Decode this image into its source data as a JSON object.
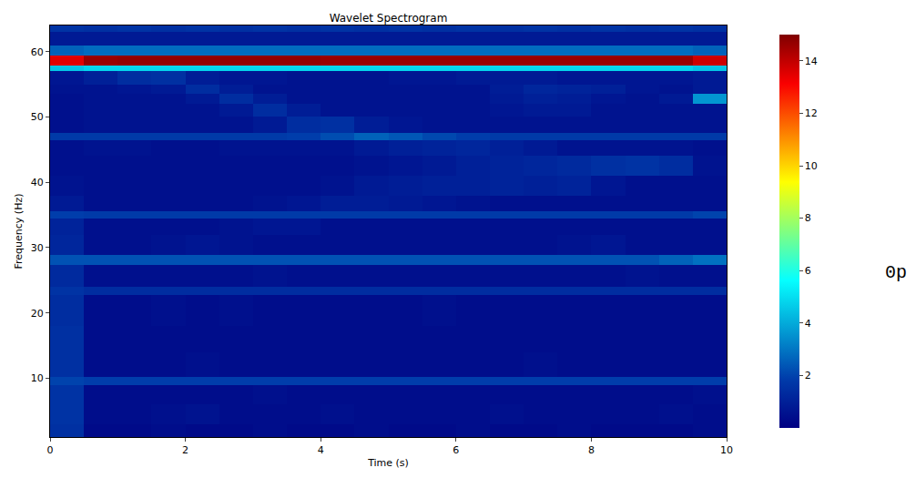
{
  "chart_data": {
    "type": "heatmap",
    "title": "Wavelet Spectrogram",
    "x_label": "Time (s)",
    "y_label": "Frequency (Hz)",
    "x": [
      0,
      0.5,
      1,
      1.5,
      2,
      2.5,
      3,
      3.5,
      4,
      4.5,
      5,
      5.5,
      6,
      6.5,
      7,
      7.5,
      8,
      8.5,
      9,
      9.5,
      10
    ],
    "y": [
      1,
      3,
      6,
      9,
      10.2,
      14,
      18,
      22.8,
      24,
      27.3,
      28.9,
      32,
      34.5,
      35.6,
      38,
      41,
      44,
      46.4,
      47.6,
      50,
      52,
      53.5,
      55,
      57,
      57.8,
      59.4,
      61,
      63,
      64
    ],
    "cells": [
      [
        1.5,
        0.3,
        0.3,
        0.4,
        0.3,
        0.3,
        0.4,
        0.3,
        0.3,
        0.4,
        0.3,
        0.3,
        0.4,
        0.3,
        0.3,
        0.4,
        0.3,
        0.3,
        0.3,
        0.4
      ],
      [
        1.6,
        0.4,
        0.4,
        0.5,
        0.6,
        0.4,
        0.4,
        0.4,
        0.5,
        0.4,
        0.4,
        0.4,
        0.4,
        0.5,
        0.4,
        0.4,
        0.4,
        0.4,
        0.5,
        0.4
      ],
      [
        1.6,
        0.4,
        0.4,
        0.4,
        0.4,
        0.4,
        0.5,
        0.4,
        0.4,
        0.4,
        0.4,
        0.4,
        0.4,
        0.4,
        0.4,
        0.4,
        0.4,
        0.4,
        0.4,
        0.5
      ],
      [
        2.0,
        1.9,
        1.9,
        1.9,
        1.9,
        1.9,
        1.9,
        1.9,
        1.9,
        1.9,
        1.9,
        1.9,
        1.9,
        1.9,
        1.9,
        1.9,
        1.9,
        1.9,
        1.9,
        1.9
      ],
      [
        1.5,
        0.4,
        0.4,
        0.4,
        0.5,
        0.4,
        0.4,
        0.4,
        0.4,
        0.4,
        0.4,
        0.4,
        0.4,
        0.4,
        0.5,
        0.4,
        0.4,
        0.4,
        0.4,
        0.4
      ],
      [
        1.5,
        0.4,
        0.4,
        0.4,
        0.4,
        0.4,
        0.4,
        0.4,
        0.4,
        0.4,
        0.4,
        0.4,
        0.4,
        0.4,
        0.4,
        0.4,
        0.4,
        0.4,
        0.4,
        0.4
      ],
      [
        1.4,
        0.4,
        0.4,
        0.5,
        0.4,
        0.5,
        0.4,
        0.4,
        0.4,
        0.4,
        0.4,
        0.5,
        0.4,
        0.4,
        0.4,
        0.4,
        0.4,
        0.4,
        0.4,
        0.4
      ],
      [
        1.6,
        1.4,
        1.4,
        1.4,
        1.4,
        1.4,
        1.4,
        1.4,
        1.4,
        1.4,
        1.4,
        1.4,
        1.4,
        1.4,
        1.4,
        1.4,
        1.4,
        1.4,
        1.4,
        1.4
      ],
      [
        1.3,
        0.5,
        0.5,
        0.5,
        0.5,
        0.5,
        0.6,
        0.5,
        0.5,
        0.5,
        0.5,
        0.5,
        0.5,
        0.5,
        0.5,
        0.5,
        0.5,
        0.6,
        0.5,
        0.5
      ],
      [
        2.3,
        2.3,
        2.3,
        2.3,
        2.3,
        2.3,
        2.3,
        2.3,
        2.3,
        2.3,
        2.3,
        2.3,
        2.3,
        2.3,
        2.3,
        2.3,
        2.3,
        2.3,
        2.6,
        2.9
      ],
      [
        1.2,
        0.5,
        0.5,
        0.6,
        0.7,
        0.6,
        0.5,
        0.5,
        0.5,
        0.5,
        0.5,
        0.5,
        0.5,
        0.5,
        0.5,
        0.6,
        0.7,
        0.5,
        0.5,
        0.5
      ],
      [
        1.1,
        0.5,
        0.5,
        0.5,
        0.5,
        0.6,
        0.7,
        0.7,
        0.5,
        0.5,
        0.5,
        0.5,
        0.5,
        0.5,
        0.5,
        0.5,
        0.5,
        0.5,
        0.5,
        0.5
      ],
      [
        1.9,
        1.8,
        1.8,
        1.8,
        1.8,
        1.8,
        1.8,
        1.8,
        1.8,
        1.8,
        1.8,
        1.8,
        1.8,
        1.8,
        1.8,
        1.8,
        1.8,
        1.8,
        1.8,
        2.0
      ],
      [
        0.8,
        0.5,
        0.5,
        0.5,
        0.5,
        0.5,
        0.6,
        0.7,
        0.9,
        0.9,
        0.8,
        0.7,
        0.6,
        0.5,
        0.5,
        0.5,
        0.5,
        0.5,
        0.5,
        0.5
      ],
      [
        0.6,
        0.5,
        0.5,
        0.5,
        0.5,
        0.5,
        0.5,
        0.5,
        0.6,
        0.8,
        0.9,
        1.0,
        1.0,
        1.1,
        1.0,
        1.1,
        0.7,
        0.5,
        0.5,
        0.5
      ],
      [
        0.5,
        0.5,
        0.5,
        0.5,
        0.5,
        0.5,
        0.5,
        0.5,
        0.5,
        0.6,
        0.7,
        0.8,
        1.0,
        1.1,
        1.2,
        1.3,
        1.5,
        1.6,
        1.4,
        0.6
      ],
      [
        0.5,
        0.6,
        0.6,
        0.5,
        0.5,
        0.6,
        0.6,
        0.6,
        0.6,
        0.8,
        1.0,
        1.1,
        1.2,
        1.0,
        0.8,
        0.6,
        0.6,
        0.6,
        0.6,
        0.5
      ],
      [
        1.8,
        1.8,
        1.8,
        1.8,
        1.8,
        1.8,
        1.8,
        1.9,
        2.2,
        2.6,
        2.4,
        2.1,
        1.9,
        1.8,
        1.8,
        1.8,
        1.8,
        1.8,
        1.8,
        1.8
      ],
      [
        0.5,
        0.6,
        0.6,
        0.6,
        0.6,
        0.6,
        0.8,
        1.4,
        1.5,
        0.9,
        0.7,
        0.6,
        0.6,
        0.6,
        0.6,
        0.6,
        0.6,
        0.6,
        0.6,
        0.6
      ],
      [
        0.5,
        0.6,
        0.6,
        0.6,
        0.6,
        0.8,
        1.4,
        0.9,
        0.6,
        0.6,
        0.6,
        0.6,
        0.6,
        0.7,
        0.8,
        0.8,
        0.6,
        0.6,
        0.6,
        0.6
      ],
      [
        0.5,
        0.6,
        0.6,
        0.6,
        0.8,
        1.4,
        0.9,
        0.6,
        0.6,
        0.6,
        0.6,
        0.6,
        0.6,
        0.8,
        1.0,
        0.9,
        0.7,
        0.6,
        0.8,
        3.6
      ],
      [
        0.6,
        0.6,
        0.7,
        0.8,
        1.4,
        0.9,
        0.6,
        0.6,
        0.6,
        0.6,
        0.6,
        0.6,
        0.6,
        0.9,
        1.2,
        1.1,
        1.0,
        0.7,
        0.6,
        0.8
      ],
      [
        0.7,
        1.0,
        1.4,
        1.5,
        0.9,
        0.7,
        0.7,
        0.6,
        0.6,
        0.6,
        0.7,
        0.7,
        0.8,
        0.8,
        0.8,
        0.7,
        0.7,
        0.7,
        0.7,
        0.8
      ],
      [
        4.5,
        4.8,
        4.8,
        4.8,
        4.8,
        4.8,
        4.8,
        4.8,
        4.8,
        4.8,
        4.8,
        4.8,
        4.8,
        4.8,
        4.8,
        4.8,
        4.8,
        4.8,
        4.8,
        4.5
      ],
      [
        13.5,
        14.6,
        14.7,
        14.7,
        14.7,
        14.7,
        14.7,
        14.7,
        14.6,
        14.6,
        14.6,
        14.6,
        14.6,
        14.6,
        14.6,
        14.6,
        14.6,
        14.6,
        14.6,
        13.8
      ],
      [
        2.6,
        2.8,
        2.8,
        2.8,
        2.8,
        2.8,
        2.8,
        2.8,
        2.8,
        2.8,
        2.8,
        2.8,
        2.8,
        2.8,
        2.8,
        2.8,
        2.8,
        2.8,
        2.8,
        2.6
      ],
      [
        0.8,
        0.8,
        0.8,
        0.8,
        0.8,
        0.8,
        0.8,
        0.8,
        0.8,
        0.8,
        0.8,
        0.8,
        0.8,
        0.8,
        0.8,
        0.8,
        0.8,
        0.8,
        0.8,
        0.8
      ],
      [
        1.6,
        1.5,
        1.6,
        1.5,
        1.6,
        1.5,
        1.6,
        1.5,
        1.6,
        1.5,
        1.6,
        1.5,
        1.6,
        1.5,
        1.6,
        1.5,
        1.6,
        1.5,
        1.6,
        1.5
      ]
    ],
    "xlim": [
      0,
      10
    ],
    "xticks": [
      0,
      2,
      4,
      6,
      8,
      10
    ],
    "ylim": [
      1,
      64
    ],
    "yticks": [
      10,
      20,
      30,
      40,
      50,
      60
    ],
    "colorbar_range": [
      0,
      15
    ],
    "colorbar_ticks": [
      2,
      4,
      6,
      8,
      10,
      12,
      14
    ],
    "annotations": [
      {
        "text": "0p"
      }
    ]
  }
}
